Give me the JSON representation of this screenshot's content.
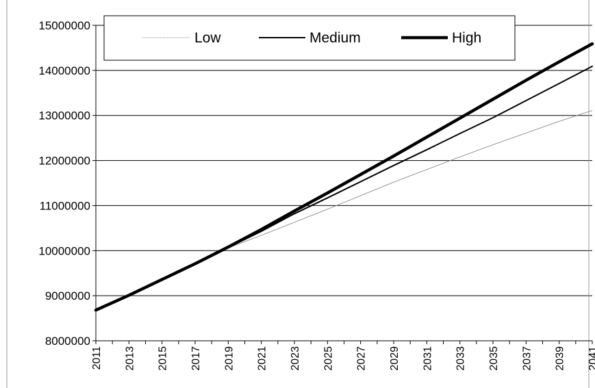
{
  "chart_data": {
    "type": "line",
    "title": "",
    "xlabel": "",
    "ylabel": "",
    "ylim": [
      8000000,
      15000000
    ],
    "yticks": [
      "8000000",
      "9000000",
      "10000000",
      "11000000",
      "12000000",
      "13000000",
      "14000000",
      "15000000"
    ],
    "x": [
      2011,
      2013,
      2015,
      2017,
      2019,
      2021,
      2023,
      2025,
      2027,
      2029,
      2031,
      2033,
      2035,
      2037,
      2039,
      2041
    ],
    "xticks": [
      "2011",
      "2013",
      "2015",
      "2017",
      "2019",
      "2021",
      "2023",
      "2025",
      "2027",
      "2029",
      "2031",
      "2033",
      "2035",
      "2037",
      "2039",
      "2041"
    ],
    "grid": "horizontal",
    "legend_position": "top",
    "series": [
      {
        "name": "Low",
        "style": "thin-dotted",
        "color": "#888888",
        "values": [
          8680000,
          9000000,
          9350000,
          9700000,
          10060000,
          10340000,
          10630000,
          10920000,
          11220000,
          11520000,
          11800000,
          12080000,
          12350000,
          12610000,
          12870000,
          13110000
        ]
      },
      {
        "name": "Medium",
        "style": "solid",
        "color": "#000000",
        "values": [
          8680000,
          9000000,
          9350000,
          9700000,
          10070000,
          10430000,
          10820000,
          11170000,
          11530000,
          11890000,
          12240000,
          12600000,
          12950000,
          13330000,
          13710000,
          14090000
        ]
      },
      {
        "name": "High",
        "style": "thick",
        "color": "#000000",
        "values": [
          8680000,
          9010000,
          9360000,
          9710000,
          10080000,
          10470000,
          10880000,
          11280000,
          11690000,
          12100000,
          12520000,
          12940000,
          13360000,
          13780000,
          14190000,
          14590000
        ]
      }
    ]
  }
}
